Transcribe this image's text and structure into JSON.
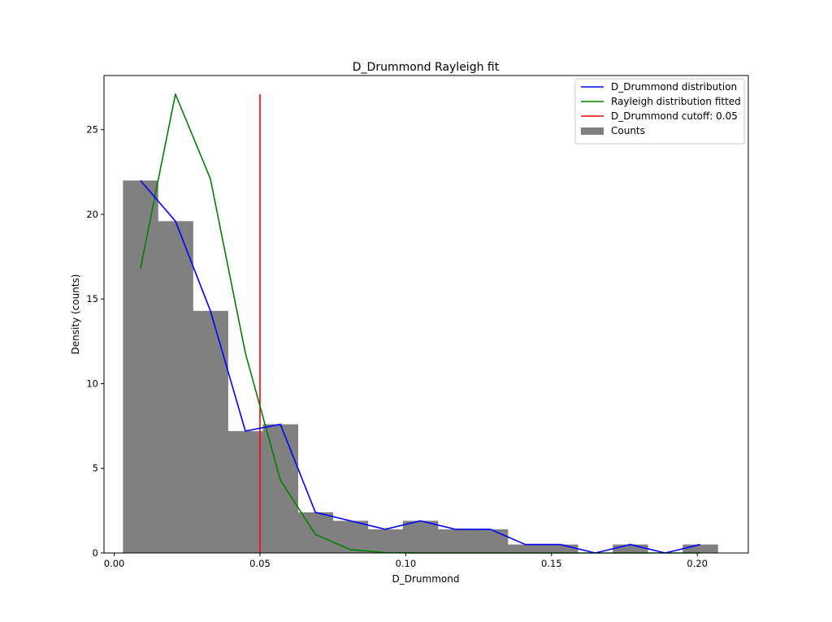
{
  "chart_data": {
    "type": "bar",
    "title": "D_Drummond Rayleigh fit",
    "xlabel": "D_Drummond",
    "ylabel": "Density (counts)",
    "xlim": [
      -0.0035,
      0.2175
    ],
    "ylim": [
      0,
      28.2
    ],
    "x_ticks": [
      0.0,
      0.05,
      0.1,
      0.15,
      0.2
    ],
    "x_tick_labels": [
      "0.00",
      "0.05",
      "0.10",
      "0.15",
      "0.20"
    ],
    "y_ticks": [
      0,
      5,
      10,
      15,
      20,
      25
    ],
    "y_tick_labels": [
      "0",
      "5",
      "10",
      "15",
      "20",
      "25"
    ],
    "grid": false,
    "legend_position": "top-right",
    "histogram": {
      "name": "Counts",
      "color": "#808080",
      "bin_edges": [
        0.003,
        0.015,
        0.027,
        0.039,
        0.051,
        0.063,
        0.075,
        0.087,
        0.099,
        0.111,
        0.123,
        0.135,
        0.147,
        0.159,
        0.171,
        0.183,
        0.195,
        0.207
      ],
      "values": [
        22.0,
        19.6,
        14.3,
        7.2,
        7.6,
        2.4,
        1.9,
        1.4,
        1.9,
        1.4,
        1.4,
        0.5,
        0.5,
        0.0,
        0.5,
        0.0,
        0.5
      ]
    },
    "series": [
      {
        "name": "D_Drummond distribution",
        "color": "#0000ff",
        "x": [
          0.009,
          0.021,
          0.033,
          0.045,
          0.057,
          0.069,
          0.081,
          0.093,
          0.105,
          0.117,
          0.129,
          0.141,
          0.153,
          0.165,
          0.177,
          0.189,
          0.201
        ],
        "y": [
          22.0,
          19.6,
          14.3,
          7.2,
          7.6,
          2.4,
          1.9,
          1.4,
          1.9,
          1.4,
          1.4,
          0.5,
          0.5,
          0.0,
          0.5,
          0.0,
          0.5
        ]
      },
      {
        "name": "Rayleigh distribution fitted",
        "color": "#008000",
        "x": [
          0.009,
          0.021,
          0.033,
          0.045,
          0.057,
          0.069,
          0.081,
          0.093,
          0.105,
          0.117,
          0.129,
          0.141,
          0.153,
          0.165,
          0.177,
          0.189,
          0.201
        ],
        "y": [
          16.8,
          27.1,
          22.1,
          11.8,
          4.3,
          1.1,
          0.2,
          0.02,
          0.0,
          0.0,
          0.0,
          0.0,
          0.0,
          0.0,
          0.0,
          0.0,
          0.0
        ]
      }
    ],
    "cutoff": {
      "name": "D_Drummond cutoff: 0.05",
      "color": "#ff0000",
      "x": 0.05,
      "y_range": [
        0,
        27.1
      ]
    },
    "legend": [
      {
        "label": "D_Drummond distribution",
        "color": "#0000ff",
        "kind": "line"
      },
      {
        "label": "Rayleigh distribution fitted",
        "color": "#008000",
        "kind": "line"
      },
      {
        "label": "D_Drummond cutoff: 0.05",
        "color": "#ff0000",
        "kind": "line"
      },
      {
        "label": "Counts",
        "color": "#808080",
        "kind": "patch"
      }
    ]
  }
}
